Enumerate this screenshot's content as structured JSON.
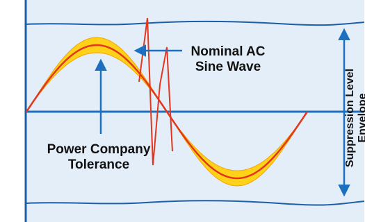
{
  "labels": {
    "nominal_line1": "Nominal AC",
    "nominal_line2": "Sine Wave",
    "tolerance_line1": "Power Company",
    "tolerance_line2": "Tolerance",
    "envelope_line1": "Suppression Level",
    "envelope_line2": "Envelope"
  },
  "colors": {
    "panel_background": "#e3eef8",
    "frame_border": "#1d5ea6",
    "axis_line": "#1d70c0",
    "sine_wave": "#e2371e",
    "tolerance_band": "#ffd21a",
    "tolerance_band_edge": "#f6a300",
    "arrows": "#1d70c0"
  },
  "icons": {
    "pointer_arrow": "arrow-icon",
    "double_arrow": "double-headed-arrow-icon"
  }
}
